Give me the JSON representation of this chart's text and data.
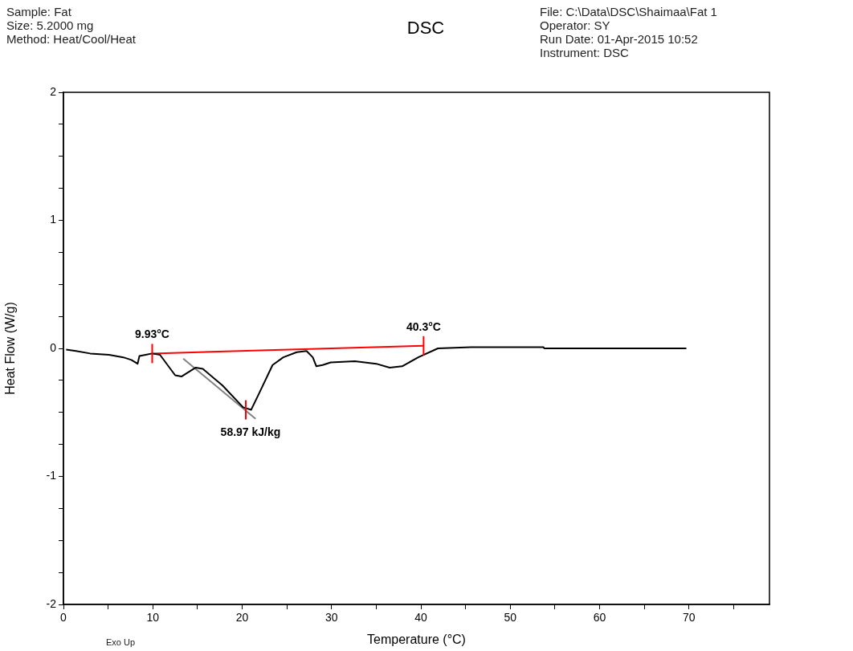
{
  "chart_data": {
    "type": "line",
    "title": "DSC",
    "xlabel": "Temperature (°C)",
    "ylabel": "Heat Flow (W/g)",
    "xlim": [
      0,
      79
    ],
    "ylim": [
      -2,
      2
    ],
    "xticks": [
      0,
      {
        "value": 5,
        "label": null
      },
      10,
      {
        "value": 15,
        "label": null
      },
      20,
      {
        "value": 25,
        "label": null
      },
      30,
      {
        "value": 35,
        "label": null
      },
      40,
      {
        "value": 45,
        "label": null
      },
      50,
      {
        "value": 55,
        "label": null
      },
      60,
      {
        "value": 65,
        "label": null
      },
      70,
      {
        "value": 75,
        "label": null
      }
    ],
    "yticks": [
      -2,
      {
        "value": -1.75,
        "label": null
      },
      {
        "value": -1.5,
        "label": null
      },
      {
        "value": -1.25,
        "label": null
      },
      -1,
      {
        "value": -0.75,
        "label": null
      },
      {
        "value": -0.5,
        "label": null
      },
      {
        "value": -0.25,
        "label": null
      },
      0,
      {
        "value": 0.25,
        "label": null
      },
      {
        "value": 0.5,
        "label": null
      },
      {
        "value": 0.75,
        "label": null
      },
      1,
      {
        "value": 1.25,
        "label": null
      },
      {
        "value": 1.5,
        "label": null
      },
      {
        "value": 1.75,
        "label": null
      },
      2
    ],
    "grid": false,
    "legend": false,
    "marker": "none",
    "line_style": "solid",
    "series": [
      {
        "color": "#000000",
        "x": [
          0.3,
          1.4,
          3.0,
          5.1,
          6.7,
          7.6,
          8.3,
          8.5,
          9.2,
          9.9,
          10.8,
          12.5,
          13.2,
          14.8,
          15.6,
          17.8,
          20.1,
          21.0,
          21.9,
          23.4,
          24.6,
          26.1,
          27.2,
          27.9,
          28.3,
          29.0,
          29.9,
          32.6,
          35.0,
          36.5,
          37.9,
          39.7,
          41.9,
          45.6,
          53.7,
          53.8,
          69.7
        ],
        "values": [
          -0.01,
          -0.02,
          -0.04,
          -0.05,
          -0.07,
          -0.09,
          -0.12,
          -0.06,
          -0.05,
          -0.04,
          -0.05,
          -0.21,
          -0.22,
          -0.15,
          -0.16,
          -0.29,
          -0.46,
          -0.48,
          -0.35,
          -0.13,
          -0.07,
          -0.03,
          -0.02,
          -0.07,
          -0.14,
          -0.13,
          -0.11,
          -0.1,
          -0.12,
          -0.15,
          -0.14,
          -0.07,
          0.0,
          0.01,
          0.01,
          0.0,
          0.0
        ]
      },
      {
        "type": "line",
        "color": "#ff0000",
        "x": [
          9.93,
          40.3
        ],
        "values": [
          -0.04,
          0.02
        ]
      },
      {
        "type": "line",
        "color": "#808080",
        "x": [
          13.4,
          21.5
        ],
        "values": [
          -0.08,
          -0.55
        ]
      }
    ],
    "annotations": [
      "Sample: Fat",
      "Size:  5.2000 mg",
      "Method: Heat/Cool/Heat",
      "File: C:\\Data\\DSC\\Shaimaa\\Fat 1",
      "Operator: SY",
      "Run Date: 01-Apr-2015 10:52",
      "Instrument: DSC",
      "Exo Up",
      {
        "text": "9.93°C",
        "x": 9.93,
        "y": -0.04
      },
      {
        "text": "40.3°C",
        "x": 40.3,
        "y": 0.02
      },
      {
        "text": "58.97 kJ/kg",
        "x": 20.4,
        "y": -0.48
      }
    ]
  }
}
